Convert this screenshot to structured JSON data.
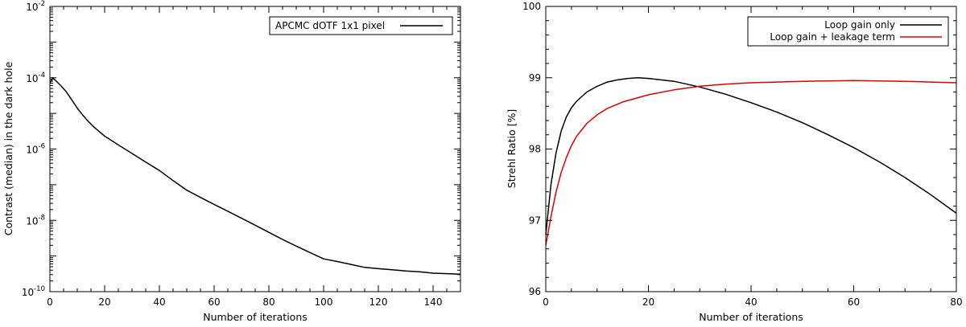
{
  "chart_data": [
    {
      "type": "line",
      "title": "",
      "xlabel": "Number of iterations",
      "ylabel": "Contrast (median) in the dark hole",
      "xlim": [
        0,
        150
      ],
      "ylim": [
        1e-10,
        0.01
      ],
      "yscale": "log",
      "grid": false,
      "legend_position": "top-right",
      "x_ticks": [
        0,
        20,
        40,
        60,
        80,
        100,
        120,
        140
      ],
      "y_ticks": [
        {
          "base": "10",
          "exp": "-2",
          "value": 0.01
        },
        {
          "base": "10",
          "exp": "-4",
          "value": 0.0001
        },
        {
          "base": "10",
          "exp": "-6",
          "value": 1e-06
        },
        {
          "base": "10",
          "exp": "-8",
          "value": 1e-08
        },
        {
          "base": "10",
          "exp": "-10",
          "value": 1e-10
        }
      ],
      "series": [
        {
          "name": "APCMC dOTF 1x1 pixel",
          "color": "#000000",
          "x": [
            0,
            1,
            2,
            4,
            6,
            8,
            10,
            12,
            14,
            16,
            18,
            20,
            25,
            30,
            35,
            40,
            45,
            50,
            55,
            60,
            65,
            70,
            75,
            80,
            85,
            90,
            95,
            100,
            105,
            110,
            115,
            120,
            125,
            130,
            135,
            140,
            145,
            150
          ],
          "y": [
            7e-05,
            0.0001,
            8.5e-05,
            6e-05,
            4e-05,
            2.4e-05,
            1.4e-05,
            9e-06,
            6e-06,
            4.2e-06,
            3.1e-06,
            2.3e-06,
            1.3e-06,
            7.5e-07,
            4.3e-07,
            2.5e-07,
            1.3e-07,
            7e-08,
            4.4e-08,
            2.8e-08,
            1.8e-08,
            1.15e-08,
            7.3e-09,
            4.6e-09,
            2.9e-09,
            1.9e-09,
            1.25e-09,
            8.3e-10,
            7e-10,
            5.8e-10,
            4.8e-10,
            4.4e-10,
            4.1e-10,
            3.8e-10,
            3.6e-10,
            3.3e-10,
            3.2e-10,
            3.1e-10
          ]
        }
      ]
    },
    {
      "type": "line",
      "title": "",
      "xlabel": "Number of iterations",
      "ylabel": "Strehl Ratio [%]",
      "xlim": [
        0,
        80
      ],
      "ylim": [
        96,
        100
      ],
      "grid": false,
      "legend_position": "top-right",
      "x_ticks": [
        0,
        20,
        40,
        60,
        80
      ],
      "y_ticks": [
        96,
        97,
        98,
        99,
        100
      ],
      "series": [
        {
          "name": "Loop gain only",
          "color": "#000000",
          "x": [
            0,
            1,
            2,
            3,
            4,
            5,
            6,
            8,
            10,
            12,
            14,
            16,
            18,
            20,
            25,
            30,
            35,
            40,
            45,
            50,
            55,
            60,
            65,
            70,
            75,
            80
          ],
          "y": [
            96.8,
            97.5,
            97.95,
            98.25,
            98.45,
            98.58,
            98.67,
            98.8,
            98.88,
            98.94,
            98.97,
            98.99,
            99.0,
            98.99,
            98.95,
            98.87,
            98.77,
            98.65,
            98.52,
            98.37,
            98.2,
            98.02,
            97.82,
            97.6,
            97.36,
            97.1
          ]
        },
        {
          "name": "Loop gain + leakage term",
          "color": "#e00000",
          "x": [
            0,
            1,
            2,
            3,
            4,
            5,
            6,
            8,
            10,
            12,
            15,
            20,
            25,
            30,
            35,
            40,
            45,
            50,
            55,
            60,
            65,
            70,
            75,
            80
          ],
          "y": [
            96.65,
            97.05,
            97.4,
            97.67,
            97.88,
            98.05,
            98.18,
            98.36,
            98.48,
            98.57,
            98.66,
            98.76,
            98.83,
            98.88,
            98.91,
            98.93,
            98.94,
            98.95,
            98.955,
            98.96,
            98.955,
            98.95,
            98.94,
            98.93
          ]
        }
      ]
    }
  ]
}
